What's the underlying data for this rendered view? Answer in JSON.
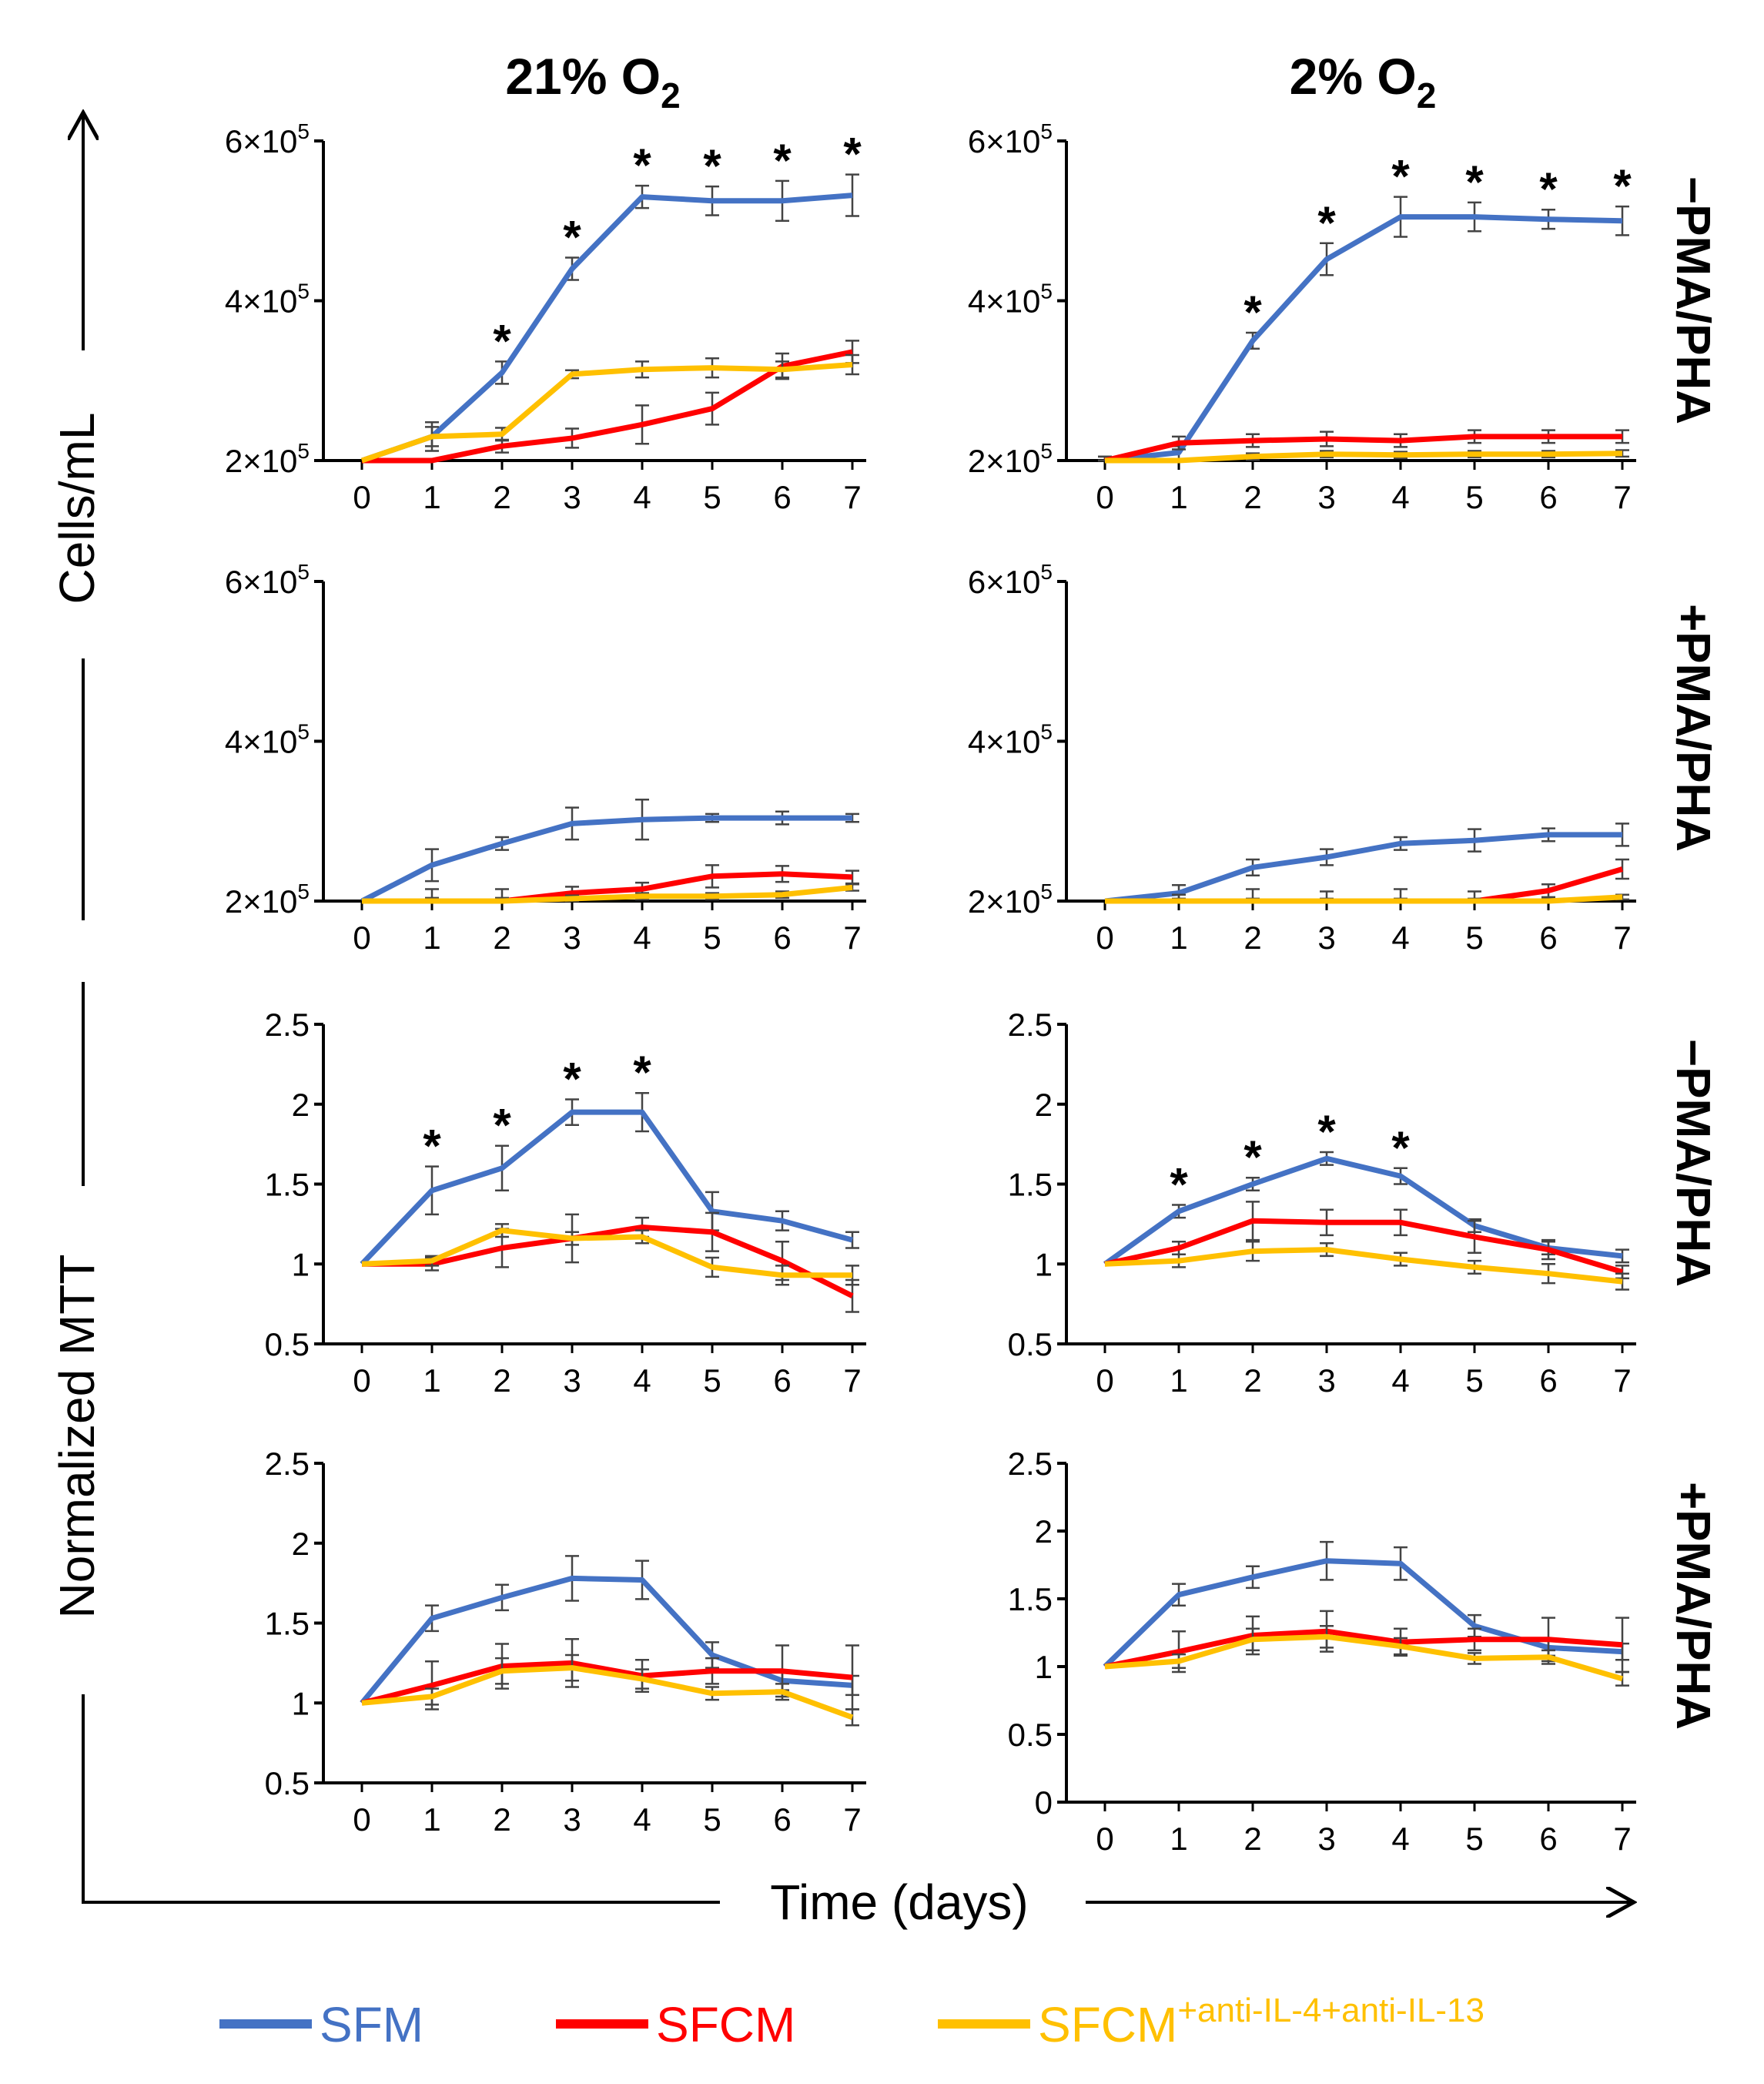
{
  "colors": {
    "SFM": "#4472C4",
    "SFCM": "#FF0000",
    "SFCM_anti": "#FFC000",
    "axis": "#000000",
    "errorbar": "#444444"
  },
  "column_titles": [
    {
      "main": "21% O",
      "sub": "2"
    },
    {
      "main": "2% O",
      "sub": "2"
    }
  ],
  "row_labels": [
    "−PMA/PHA",
    "+PMA/PHA",
    "−PMA/PHA",
    "+PMA/PHA"
  ],
  "axis_titles": {
    "cells": "Cells/mL",
    "mtt": "Normalized MTT",
    "time": "Time (days)"
  },
  "legend": {
    "items": [
      {
        "key": "SFM",
        "label": "SFM",
        "sup": ""
      },
      {
        "key": "SFCM",
        "label": "SFCM",
        "sup": ""
      },
      {
        "key": "SFCM_anti",
        "label": "SFCM",
        "sup": "+anti-IL-4+anti-IL-13"
      }
    ]
  },
  "chart_data": [
    {
      "type": "line",
      "row": 0,
      "col": 0,
      "title": "21% O2, −PMA/PHA",
      "ylabel": "Cells/mL",
      "xlabel": "Time (days)",
      "x": [
        0,
        1,
        2,
        3,
        4,
        5,
        6,
        7
      ],
      "ylim": [
        200000,
        600000
      ],
      "yticks": [
        {
          "v": 200000,
          "m": "2×10",
          "e": "5"
        },
        {
          "v": 400000,
          "m": "4×10",
          "e": "5"
        },
        {
          "v": 600000,
          "m": "6×10",
          "e": "5"
        }
      ],
      "series": [
        {
          "name": "SFM",
          "values": [
            200000,
            230000,
            310000,
            440000,
            530000,
            525000,
            525000,
            532000
          ],
          "errors": [
            0,
            18000,
            14000,
            14000,
            14000,
            18000,
            25000,
            26000
          ]
        },
        {
          "name": "SFCM",
          "values": [
            200000,
            200000,
            218000,
            228000,
            245000,
            265000,
            318000,
            336000
          ],
          "errors": [
            0,
            0,
            8000,
            12000,
            24000,
            20000,
            16000,
            14000
          ]
        },
        {
          "name": "SFCM+anti-IL-4+anti-IL-13",
          "values": [
            200000,
            230000,
            233000,
            308000,
            314000,
            316000,
            314000,
            320000
          ],
          "errors": [
            0,
            12000,
            8000,
            5000,
            10000,
            12000,
            10000,
            12000
          ]
        }
      ],
      "significance": [
        2,
        3,
        4,
        5,
        6,
        7
      ]
    },
    {
      "type": "line",
      "row": 0,
      "col": 1,
      "title": "2% O2, −PMA/PHA",
      "ylabel": "Cells/mL",
      "xlabel": "Time (days)",
      "x": [
        0,
        1,
        2,
        3,
        4,
        5,
        6,
        7
      ],
      "ylim": [
        200000,
        600000
      ],
      "yticks": [
        {
          "v": 200000,
          "m": "2×10",
          "e": "5"
        },
        {
          "v": 400000,
          "m": "4×10",
          "e": "5"
        },
        {
          "v": 600000,
          "m": "6×10",
          "e": "5"
        }
      ],
      "series": [
        {
          "name": "SFM",
          "values": [
            200000,
            210000,
            350000,
            452000,
            505000,
            505000,
            502000,
            500000
          ],
          "errors": [
            5000,
            8000,
            10000,
            20000,
            25000,
            18000,
            12000,
            18000
          ]
        },
        {
          "name": "SFCM",
          "values": [
            200000,
            222000,
            225000,
            227000,
            225000,
            230000,
            230000,
            230000
          ],
          "errors": [
            5000,
            8000,
            8000,
            9000,
            8000,
            8000,
            8000,
            8000
          ]
        },
        {
          "name": "SFCM+anti-IL-4+anti-IL-13",
          "values": [
            200000,
            200000,
            205000,
            208000,
            207000,
            208000,
            208000,
            209000
          ],
          "errors": [
            0,
            2000,
            4000,
            4000,
            4000,
            4000,
            4000,
            4000
          ]
        }
      ],
      "significance": [
        2,
        3,
        4,
        5,
        6,
        7
      ]
    },
    {
      "type": "line",
      "row": 1,
      "col": 0,
      "title": "21% O2, +PMA/PHA",
      "ylabel": "Cells/mL",
      "xlabel": "Time (days)",
      "x": [
        0,
        1,
        2,
        3,
        4,
        5,
        6,
        7
      ],
      "ylim": [
        200000,
        600000
      ],
      "yticks": [
        {
          "v": 200000,
          "m": "2×10",
          "e": "5"
        },
        {
          "v": 400000,
          "m": "4×10",
          "e": "5"
        },
        {
          "v": 600000,
          "m": "6×10",
          "e": "5"
        }
      ],
      "series": [
        {
          "name": "SFM",
          "values": [
            200000,
            245000,
            272000,
            297000,
            302000,
            304000,
            304000,
            304000
          ],
          "errors": [
            0,
            20000,
            8000,
            20000,
            25000,
            5000,
            8000,
            5000
          ]
        },
        {
          "name": "SFCM",
          "values": [
            200000,
            200000,
            200000,
            210000,
            215000,
            231000,
            234000,
            230000
          ],
          "errors": [
            0,
            15000,
            15000,
            8000,
            8000,
            14000,
            10000,
            8000
          ]
        },
        {
          "name": "SFCM+anti-IL-4+anti-IL-13",
          "values": [
            200000,
            200000,
            200000,
            203000,
            206000,
            206000,
            208000,
            217000
          ],
          "errors": [
            0,
            4000,
            4000,
            4000,
            4000,
            4000,
            4000,
            4000
          ]
        }
      ],
      "significance": []
    },
    {
      "type": "line",
      "row": 1,
      "col": 1,
      "title": "2% O2, +PMA/PHA",
      "ylabel": "Cells/mL",
      "xlabel": "Time (days)",
      "x": [
        0,
        1,
        2,
        3,
        4,
        5,
        6,
        7
      ],
      "ylim": [
        200000,
        600000
      ],
      "yticks": [
        {
          "v": 200000,
          "m": "2×10",
          "e": "5"
        },
        {
          "v": 400000,
          "m": "4×10",
          "e": "5"
        },
        {
          "v": 600000,
          "m": "6×10",
          "e": "5"
        }
      ],
      "series": [
        {
          "name": "SFM",
          "values": [
            200000,
            210000,
            242000,
            255000,
            272000,
            276000,
            283000,
            283000
          ],
          "errors": [
            0,
            10000,
            10000,
            10000,
            8000,
            14000,
            8000,
            14000
          ]
        },
        {
          "name": "SFCM",
          "values": [
            200000,
            200000,
            200000,
            200000,
            200000,
            200000,
            213000,
            240000
          ],
          "errors": [
            0,
            8000,
            15000,
            12000,
            15000,
            12000,
            8000,
            12000
          ]
        },
        {
          "name": "SFCM+anti-IL-4+anti-IL-13",
          "values": [
            200000,
            200000,
            200000,
            200000,
            200000,
            200000,
            200000,
            205000
          ],
          "errors": [
            0,
            3000,
            3000,
            3000,
            3000,
            3000,
            3000,
            3000
          ]
        }
      ],
      "significance": []
    },
    {
      "type": "line",
      "row": 2,
      "col": 0,
      "title": "21% O2, −PMA/PHA",
      "ylabel": "Normalized MTT",
      "xlabel": "Time (days)",
      "x": [
        0,
        1,
        2,
        3,
        4,
        5,
        6,
        7
      ],
      "ylim": [
        0.5,
        2.5
      ],
      "yticks": [
        {
          "v": 0.5,
          "m": "0.5"
        },
        {
          "v": 1,
          "m": "1"
        },
        {
          "v": 1.5,
          "m": "1.5"
        },
        {
          "v": 2,
          "m": "2"
        },
        {
          "v": 2.5,
          "m": "2.5"
        }
      ],
      "series": [
        {
          "name": "SFM",
          "values": [
            1.0,
            1.46,
            1.6,
            1.95,
            1.95,
            1.33,
            1.27,
            1.15
          ],
          "errors": [
            0,
            0.15,
            0.14,
            0.08,
            0.12,
            0.12,
            0.06,
            0.05
          ]
        },
        {
          "name": "SFCM",
          "values": [
            1.0,
            1.0,
            1.1,
            1.16,
            1.23,
            1.2,
            1.02,
            0.8
          ],
          "errors": [
            0,
            0.04,
            0.12,
            0.15,
            0.06,
            0.12,
            0.12,
            0.1
          ]
        },
        {
          "name": "SFCM+anti-IL-4+anti-IL-13",
          "values": [
            1.0,
            1.02,
            1.21,
            1.16,
            1.17,
            0.98,
            0.93,
            0.93
          ],
          "errors": [
            0,
            0.03,
            0.04,
            0.04,
            0.04,
            0.06,
            0.06,
            0.06
          ]
        }
      ],
      "significance": [
        1,
        2,
        3,
        4
      ]
    },
    {
      "type": "line",
      "row": 2,
      "col": 1,
      "title": "2% O2, −PMA/PHA",
      "ylabel": "Normalized MTT",
      "xlabel": "Time (days)",
      "x": [
        0,
        1,
        2,
        3,
        4,
        5,
        6,
        7
      ],
      "ylim": [
        0.5,
        2.5
      ],
      "yticks": [
        {
          "v": 0.5,
          "m": "0.5"
        },
        {
          "v": 1,
          "m": "1"
        },
        {
          "v": 1.5,
          "m": "1.5"
        },
        {
          "v": 2,
          "m": "2"
        },
        {
          "v": 2.5,
          "m": "2.5"
        }
      ],
      "series": [
        {
          "name": "SFM",
          "values": [
            1.0,
            1.33,
            1.5,
            1.66,
            1.55,
            1.24,
            1.1,
            1.05
          ],
          "errors": [
            0,
            0.04,
            0.04,
            0.04,
            0.05,
            0.04,
            0.04,
            0.04
          ]
        },
        {
          "name": "SFCM",
          "values": [
            1.0,
            1.1,
            1.27,
            1.26,
            1.26,
            1.17,
            1.09,
            0.95
          ],
          "errors": [
            0,
            0.04,
            0.12,
            0.08,
            0.08,
            0.1,
            0.06,
            0.04
          ]
        },
        {
          "name": "SFCM+anti-IL-4+anti-IL-13",
          "values": [
            1.0,
            1.02,
            1.08,
            1.09,
            1.03,
            0.98,
            0.94,
            0.89
          ],
          "errors": [
            0,
            0.04,
            0.06,
            0.04,
            0.04,
            0.04,
            0.06,
            0.05
          ]
        }
      ],
      "significance": [
        1,
        2,
        3,
        4
      ]
    },
    {
      "type": "line",
      "row": 3,
      "col": 0,
      "title": "21% O2, +PMA/PHA",
      "ylabel": "Normalized MTT",
      "xlabel": "Time (days)",
      "x": [
        0,
        1,
        2,
        3,
        4,
        5,
        6,
        7
      ],
      "ylim": [
        0.5,
        2.5
      ],
      "yticks": [
        {
          "v": 0.5,
          "m": "0.5"
        },
        {
          "v": 1,
          "m": "1"
        },
        {
          "v": 1.5,
          "m": "1.5"
        },
        {
          "v": 2,
          "m": "2"
        },
        {
          "v": 2.5,
          "m": "2.5"
        }
      ],
      "series": [
        {
          "name": "SFM",
          "values": [
            1.0,
            1.53,
            1.66,
            1.78,
            1.77,
            1.3,
            1.14,
            1.11
          ],
          "errors": [
            0,
            0.08,
            0.08,
            0.14,
            0.12,
            0.08,
            0.06,
            0.06
          ]
        },
        {
          "name": "SFCM",
          "values": [
            1.0,
            1.11,
            1.23,
            1.25,
            1.17,
            1.2,
            1.2,
            1.16
          ],
          "errors": [
            0,
            0.15,
            0.14,
            0.15,
            0.1,
            0.08,
            0.16,
            0.2
          ]
        },
        {
          "name": "SFCM+anti-IL-4+anti-IL-13",
          "values": [
            1.0,
            1.04,
            1.2,
            1.22,
            1.15,
            1.06,
            1.07,
            0.91
          ],
          "errors": [
            0,
            0.05,
            0.08,
            0.08,
            0.06,
            0.04,
            0.05,
            0.05
          ]
        }
      ],
      "significance": []
    },
    {
      "type": "line",
      "row": 3,
      "col": 1,
      "title": "2% O2, +PMA/PHA",
      "ylabel": "Normalized MTT",
      "xlabel": "Time (days)",
      "x": [
        0,
        1,
        2,
        3,
        4,
        5,
        6,
        7
      ],
      "ylim": [
        0,
        2.5
      ],
      "yticks": [
        {
          "v": 0,
          "m": "0"
        },
        {
          "v": 0.5,
          "m": "0.5"
        },
        {
          "v": 1,
          "m": "1"
        },
        {
          "v": 1.5,
          "m": "1.5"
        },
        {
          "v": 2,
          "m": "2"
        },
        {
          "v": 2.5,
          "m": "2.5"
        }
      ],
      "series": [
        {
          "name": "SFM",
          "values": [
            1.0,
            1.53,
            1.66,
            1.78,
            1.76,
            1.3,
            1.14,
            1.11
          ],
          "errors": [
            0,
            0.08,
            0.08,
            0.14,
            0.12,
            0.08,
            0.06,
            0.06
          ]
        },
        {
          "name": "SFCM",
          "values": [
            1.0,
            1.11,
            1.23,
            1.26,
            1.18,
            1.2,
            1.2,
            1.16
          ],
          "errors": [
            0,
            0.15,
            0.14,
            0.15,
            0.1,
            0.08,
            0.16,
            0.2
          ]
        },
        {
          "name": "SFCM+anti-IL-4+anti-IL-13",
          "values": [
            1.0,
            1.04,
            1.2,
            1.22,
            1.15,
            1.06,
            1.07,
            0.91
          ],
          "errors": [
            0,
            0.05,
            0.08,
            0.08,
            0.06,
            0.04,
            0.05,
            0.05
          ]
        }
      ],
      "significance": []
    }
  ]
}
